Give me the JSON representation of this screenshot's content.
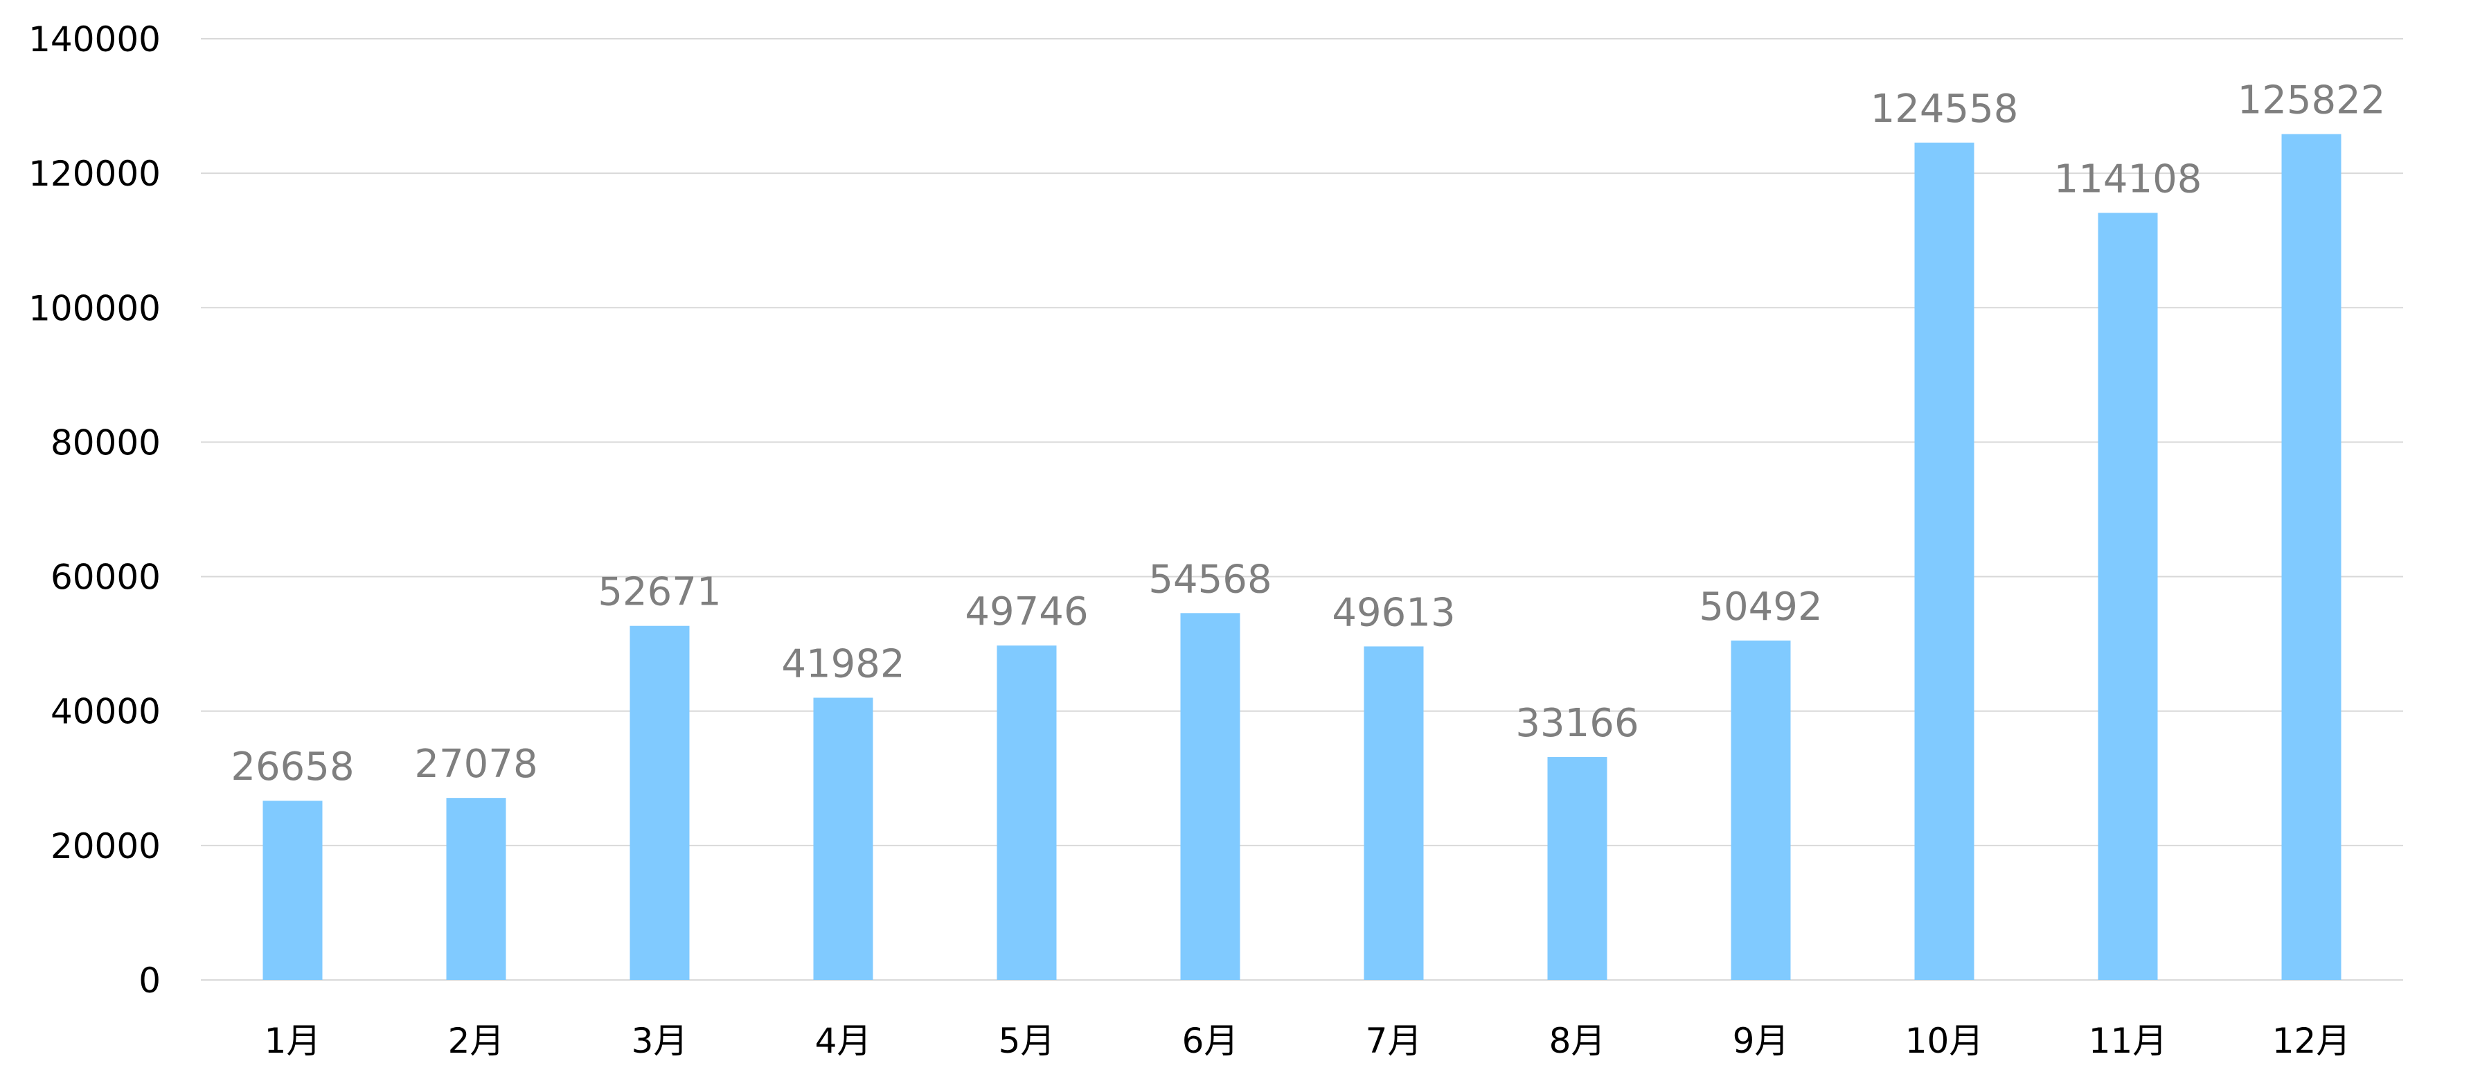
{
  "chart_data": {
    "type": "bar",
    "categories": [
      "1月",
      "2月",
      "3月",
      "4月",
      "5月",
      "6月",
      "7月",
      "8月",
      "9月",
      "10月",
      "11月",
      "12月"
    ],
    "values": [
      26658,
      27078,
      52671,
      41982,
      49746,
      54568,
      49613,
      33166,
      50492,
      124558,
      114108,
      125822
    ],
    "data_labels": [
      "26658",
      "27078",
      "52671",
      "41982",
      "49746",
      "54568",
      "49613",
      "33166",
      "50492",
      "124558",
      "114108",
      "125822"
    ],
    "ylim": [
      0,
      140000
    ],
    "yticks": [
      0,
      20000,
      40000,
      60000,
      80000,
      100000,
      120000,
      140000
    ],
    "ytick_labels": [
      "0",
      "20000",
      "40000",
      "60000",
      "80000",
      "100000",
      "120000",
      "140000"
    ],
    "grid": true,
    "legend": "none",
    "bar_color": "#80caff",
    "label_color": "#7f7f7f",
    "gridline_color": "#d9d9d9"
  }
}
